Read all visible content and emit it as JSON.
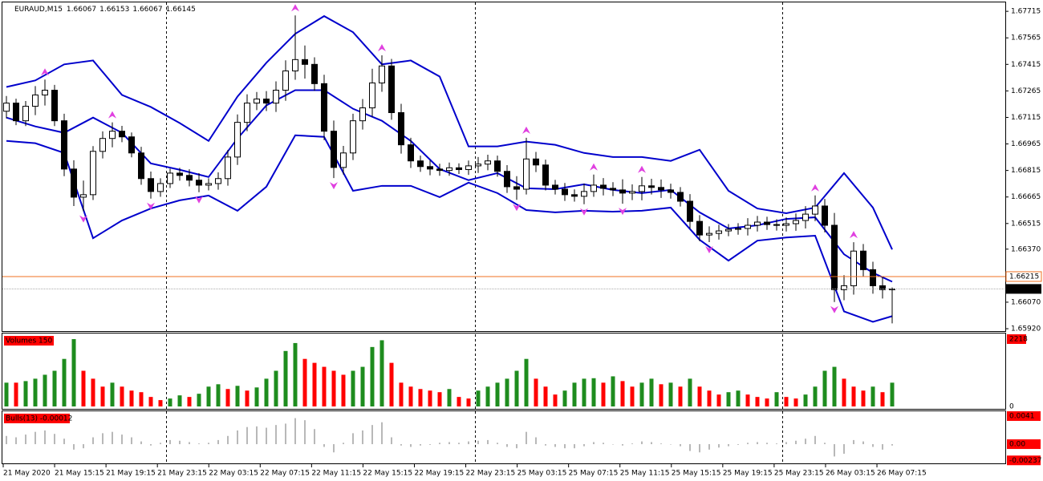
{
  "chart_data": {
    "type": "candlestick",
    "symbol": "EURAUD,M15",
    "header_ohlc": [
      1.66067,
      1.66153,
      1.66067,
      1.66145
    ],
    "x_labels": [
      "21 May 2020",
      "21 May 15:15",
      "21 May 19:15",
      "21 May 23:15",
      "22 May 03:15",
      "22 May 07:15",
      "22 May 11:15",
      "22 May 15:15",
      "22 May 19:15",
      "22 May 23:15",
      "25 May 03:15",
      "25 May 07:15",
      "25 May 11:15",
      "25 May 15:15",
      "25 May 19:15",
      "25 May 23:15",
      "26 May 03:15",
      "26 May 07:15"
    ],
    "ylim": [
      1.65902,
      1.6777
    ],
    "yticks": [
      1.67715,
      1.67565,
      1.67415,
      1.67265,
      1.67115,
      1.66965,
      1.66815,
      1.66665,
      1.66515,
      {
        "value": 1.6637,
        "label": "1.66370"
      },
      {
        "value": 1.6607,
        "label": "1.66070"
      },
      {
        "value": 1.6592,
        "label": "1.65920"
      }
    ],
    "open": [
      1.6715,
      1.67196,
      1.67096,
      1.67178,
      1.67242,
      1.67269,
      1.67096,
      1.66823,
      1.66664,
      1.66678,
      1.66923,
      1.66996,
      1.67037,
      1.67005,
      1.66914,
      1.66769,
      1.66696,
      1.66741,
      1.668,
      1.66787,
      1.6676,
      1.66732,
      1.66741,
      1.66769,
      1.66891,
      1.67087,
      1.67196,
      1.67219,
      1.67196,
      1.67269,
      1.67378,
      1.67442,
      1.67415,
      1.67306,
      1.67037,
      1.66832,
      1.66914,
      1.67096,
      1.67169,
      1.6731,
      1.67406,
      1.67142,
      1.6696,
      1.66869,
      1.66837,
      1.66823,
      1.66815,
      1.6683,
      1.6682,
      1.66841,
      1.66851,
      1.66869,
      1.6681,
      1.66723,
      1.66709,
      1.6688,
      1.66846,
      1.66732,
      1.66709,
      1.66678,
      1.66669,
      1.66696,
      1.66732,
      1.66714,
      1.66705,
      1.66687,
      1.66696,
      1.66728,
      1.66719,
      1.66705,
      1.66691,
      1.66641,
      1.66527,
      1.6645,
      1.66459,
      1.66473,
      1.66482,
      1.66487,
      1.66505,
      1.66523,
      1.66509,
      1.66505,
      1.66514,
      1.66532,
      1.66568,
      1.66614,
      1.66505,
      1.66141,
      1.66163,
      1.66359,
      1.66254,
      1.66163,
      1.66141
    ],
    "high": [
      1.67236,
      1.67221,
      1.67208,
      1.67292,
      1.67329,
      1.67299,
      1.67136,
      1.66873,
      1.66758,
      1.66953,
      1.67036,
      1.67087,
      1.67067,
      1.6703,
      1.66949,
      1.66809,
      1.66771,
      1.66825,
      1.6683,
      1.66822,
      1.668,
      1.66771,
      1.66804,
      1.66931,
      1.67132,
      1.67246,
      1.67259,
      1.67264,
      1.67319,
      1.67438,
      1.67692,
      1.67522,
      1.67455,
      1.67356,
      1.67097,
      1.66954,
      1.67136,
      1.67219,
      1.6739,
      1.67466,
      1.67446,
      1.67192,
      1.67,
      1.66899,
      1.66872,
      1.66853,
      1.6686,
      1.66855,
      1.66871,
      1.66891,
      1.66904,
      1.66899,
      1.66845,
      1.66783,
      1.67,
      1.6692,
      1.66876,
      1.66762,
      1.66744,
      1.66708,
      1.66741,
      1.66792,
      1.66772,
      1.66749,
      1.66765,
      1.66736,
      1.66778,
      1.66768,
      1.66764,
      1.6674,
      1.66721,
      1.66681,
      1.66562,
      1.66499,
      1.66508,
      1.66512,
      1.66517,
      1.66545,
      1.66558,
      1.66553,
      1.66539,
      1.66549,
      1.66572,
      1.66613,
      1.66674,
      1.66654,
      1.66575,
      1.66223,
      1.66409,
      1.66399,
      1.66299,
      1.66213,
      1.66153
    ],
    "low": [
      1.6711,
      1.67071,
      1.67066,
      1.67128,
      1.67182,
      1.67066,
      1.66783,
      1.66614,
      1.66584,
      1.66648,
      1.66883,
      1.66946,
      1.66975,
      1.66889,
      1.66734,
      1.66656,
      1.66666,
      1.66716,
      1.66757,
      1.66725,
      1.66692,
      1.66702,
      1.66706,
      1.66729,
      1.66846,
      1.67037,
      1.67156,
      1.67151,
      1.67146,
      1.67209,
      1.67328,
      1.67335,
      1.67266,
      1.66987,
      1.66772,
      1.66792,
      1.66874,
      1.67046,
      1.67119,
      1.6726,
      1.67102,
      1.6691,
      1.66829,
      1.66807,
      1.66788,
      1.66785,
      1.66785,
      1.66795,
      1.6679,
      1.66801,
      1.66816,
      1.6678,
      1.66688,
      1.66649,
      1.66679,
      1.66806,
      1.66702,
      1.66679,
      1.66643,
      1.66639,
      1.66624,
      1.66666,
      1.66674,
      1.6667,
      1.66627,
      1.66647,
      1.66646,
      1.66679,
      1.6666,
      1.66656,
      1.66611,
      1.66487,
      1.66415,
      1.6641,
      1.66424,
      1.66443,
      1.66452,
      1.66447,
      1.6647,
      1.66479,
      1.66475,
      1.6647,
      1.66474,
      1.66487,
      1.66528,
      1.66465,
      1.66071,
      1.66081,
      1.66113,
      1.66214,
      1.66118,
      1.66091,
      1.6595
    ],
    "close": [
      1.67196,
      1.67096,
      1.67178,
      1.67242,
      1.67269,
      1.67096,
      1.66823,
      1.66664,
      1.66678,
      1.66923,
      1.66996,
      1.67037,
      1.67005,
      1.66914,
      1.66769,
      1.66696,
      1.66741,
      1.668,
      1.66787,
      1.6676,
      1.66732,
      1.66741,
      1.66769,
      1.66891,
      1.67087,
      1.67196,
      1.67219,
      1.67196,
      1.67269,
      1.67378,
      1.67442,
      1.67415,
      1.67306,
      1.67037,
      1.66832,
      1.66914,
      1.67096,
      1.67169,
      1.6731,
      1.67406,
      1.67142,
      1.6696,
      1.66869,
      1.66837,
      1.66823,
      1.66815,
      1.6683,
      1.6682,
      1.66841,
      1.66851,
      1.66869,
      1.6681,
      1.66723,
      1.66709,
      1.6688,
      1.66846,
      1.66732,
      1.66709,
      1.66678,
      1.66669,
      1.66696,
      1.66732,
      1.66714,
      1.66705,
      1.66687,
      1.66696,
      1.66728,
      1.66719,
      1.66705,
      1.66691,
      1.66641,
      1.66527,
      1.6645,
      1.66459,
      1.66473,
      1.66482,
      1.66487,
      1.66505,
      1.66523,
      1.66509,
      1.66505,
      1.66514,
      1.66532,
      1.66568,
      1.66614,
      1.66505,
      1.66141,
      1.66163,
      1.66359,
      1.66254,
      1.66163,
      1.66141,
      1.66145
    ],
    "bands": {
      "color": "#0000cc",
      "x": [
        0,
        3,
        6,
        9,
        12,
        15,
        18,
        21,
        24,
        27,
        30,
        33,
        36,
        39,
        42,
        45,
        48,
        51,
        54,
        57,
        60,
        63,
        66,
        69,
        72,
        75,
        78,
        81,
        84,
        87,
        90,
        92
      ],
      "upper": [
        1.67287,
        1.67324,
        1.67415,
        1.67437,
        1.67242,
        1.67174,
        1.67083,
        1.66982,
        1.67233,
        1.67424,
        1.67588,
        1.67688,
        1.67597,
        1.67415,
        1.67437,
        1.67346,
        1.66951,
        1.66951,
        1.66978,
        1.6696,
        1.66914,
        1.66891,
        1.66891,
        1.66869,
        1.66932,
        1.667,
        1.666,
        1.66573,
        1.66605,
        1.668,
        1.66605,
        1.66368
      ],
      "middle": [
        1.67114,
        1.67064,
        1.67028,
        1.67114,
        1.67028,
        1.66855,
        1.66819,
        1.66778,
        1.66996,
        1.67183,
        1.67269,
        1.67269,
        1.67164,
        1.67096,
        1.66982,
        1.66823,
        1.6676,
        1.668,
        1.66714,
        1.66709,
        1.66737,
        1.66705,
        1.66687,
        1.66705,
        1.66578,
        1.66487,
        1.66505,
        1.66541,
        1.6655,
        1.66341,
        1.66236,
        1.66186
      ],
      "lower": [
        1.66982,
        1.66969,
        1.66914,
        1.66432,
        1.66532,
        1.666,
        1.66646,
        1.66673,
        1.66587,
        1.66723,
        1.67014,
        1.67005,
        1.667,
        1.66728,
        1.66728,
        1.66664,
        1.66746,
        1.66687,
        1.66591,
        1.66578,
        1.66587,
        1.66582,
        1.66587,
        1.66605,
        1.66423,
        1.66305,
        1.66418,
        1.66436,
        1.66446,
        1.66018,
        1.65959,
        1.65991
      ]
    },
    "fractals": {
      "color": "#e040e0",
      "up_x": [
        4,
        11,
        30,
        39,
        54,
        61,
        66,
        84,
        88
      ],
      "up_values": [
        1.67329,
        1.67087,
        1.67692,
        1.67466,
        1.67,
        1.66792,
        1.66778,
        1.66674,
        1.66409
      ],
      "down_x": [
        8,
        15,
        20,
        34,
        53,
        60,
        64,
        73,
        86
      ],
      "down_values": [
        1.66584,
        1.66656,
        1.66692,
        1.66772,
        1.66649,
        1.66624,
        1.66627,
        1.6641,
        1.66071
      ]
    },
    "level_line": {
      "value": 1.66215,
      "color": "#f07020"
    },
    "bid": 1.66145,
    "volumes": {
      "title": "Volumes 150",
      "ylim": [
        0,
        2218
      ],
      "yticks": [
        0,
        2218
      ],
      "up_color": "#1e8c1e",
      "down_color": "#ff0000",
      "values": [
        783,
        783,
        835,
        914,
        1044,
        1175,
        1566,
        2218,
        1175,
        914,
        653,
        783,
        653,
        522,
        470,
        313,
        209,
        261,
        365,
        313,
        418,
        653,
        731,
        574,
        679,
        522,
        626,
        914,
        1175,
        1827,
        2088,
        1566,
        1436,
        1305,
        1175,
        1044,
        1175,
        1305,
        1958,
        2180,
        1436,
        783,
        653,
        574,
        522,
        470,
        574,
        313,
        261,
        522,
        653,
        783,
        914,
        1175,
        1566,
        914,
        653,
        392,
        522,
        783,
        914,
        930,
        783,
        992,
        835,
        653,
        783,
        914,
        731,
        783,
        653,
        914,
        653,
        522,
        392,
        470,
        522,
        392,
        313,
        261,
        470,
        313,
        261,
        392,
        653,
        1175,
        1305,
        914,
        653,
        522,
        653,
        470,
        783
      ]
    },
    "bulls": {
      "title": "Bulls(13) -0.00012",
      "ylim": [
        -0.00269,
        0.00469
      ],
      "yticks": [
        0.0041,
        {
          "value": 0,
          "label": "0.00"
        },
        -0.00237
      ],
      "color": "#b8b8b8",
      "values": [
        0.0012,
        0.001,
        0.0014,
        0.0018,
        0.002,
        0.0015,
        0.0008,
        -0.0008,
        -0.0006,
        0.001,
        0.0016,
        0.0018,
        0.0014,
        0.001,
        0.0004,
        -0.0002,
        0.0002,
        0.0006,
        0.0005,
        0.0003,
        0.0001,
        0.0002,
        0.0006,
        0.0012,
        0.002,
        0.0025,
        0.0026,
        0.0024,
        0.0028,
        0.003,
        0.0038,
        0.0035,
        0.0022,
        -0.0004,
        -0.0012,
        0.0002,
        0.0016,
        0.002,
        0.0028,
        0.0032,
        0.001,
        -0.0002,
        -0.0004,
        -0.0002,
        -0.0001,
        0.0002,
        0.0003,
        0.0002,
        0.0004,
        0.0005,
        0.0006,
        0.0002,
        -0.0004,
        -0.0006,
        0.0018,
        0.001,
        -0.0002,
        -0.0004,
        -0.0006,
        -0.0006,
        -0.0003,
        0.0003,
        0.0002,
        0,
        -0.0002,
        0.0001,
        0.0004,
        0.0003,
        0.0001,
        0,
        -0.0003,
        -0.001,
        -0.0012,
        -0.0008,
        -0.0005,
        -0.0003,
        -0.0001,
        0.0002,
        0.0003,
        0.0002,
        0.0001,
        0.0003,
        0.0005,
        0.0008,
        0.0012,
        0.0002,
        -0.0018,
        -0.0014,
        0.0006,
        0.0004,
        -0.0004,
        -0.0008,
        -0.0002
      ]
    }
  }
}
